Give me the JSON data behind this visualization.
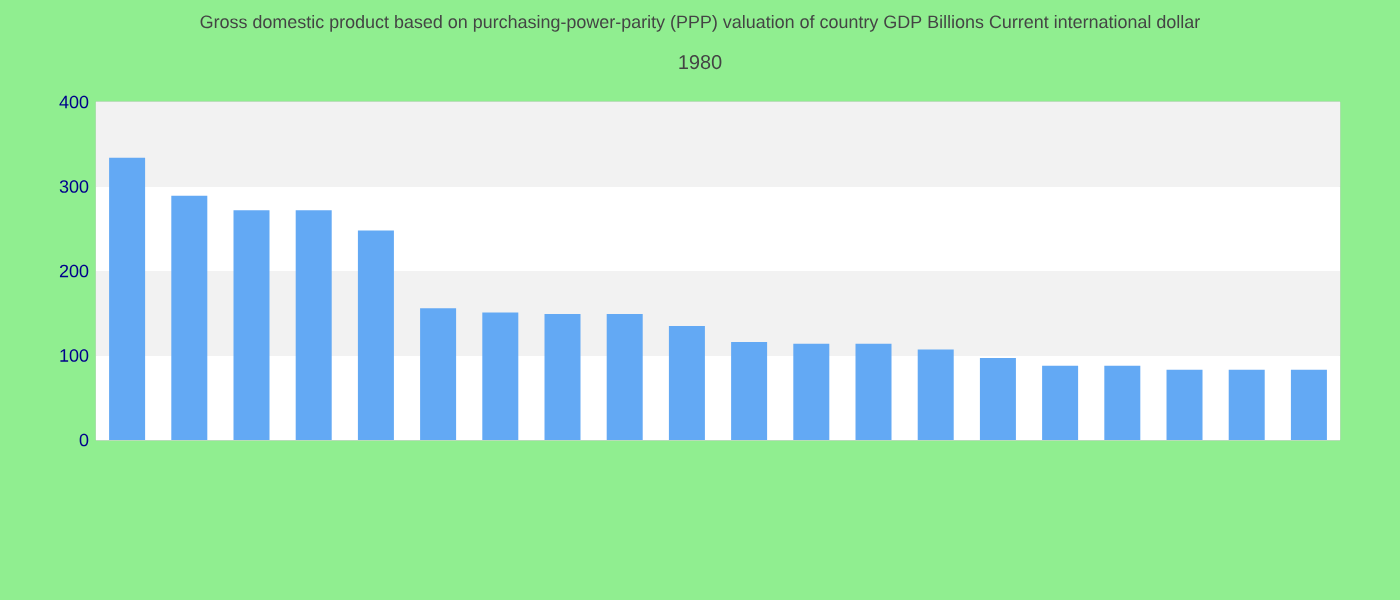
{
  "chart_data": {
    "type": "bar",
    "title": "Gross domestic product based on purchasing-power-parity (PPP) valuation of country GDP Billions Current international dollar",
    "subtitle": "1980",
    "categories": [
      null,
      null,
      null,
      null,
      null,
      null,
      null,
      null,
      null,
      null,
      null,
      null,
      null,
      null,
      null,
      null,
      null,
      null,
      null,
      null
    ],
    "values": [
      334,
      289,
      272,
      272,
      248,
      156,
      151,
      149,
      149,
      135,
      116,
      114,
      114,
      107,
      97,
      88,
      88,
      83,
      83,
      83
    ],
    "color": "#63a9f4",
    "ylim": [
      0,
      400
    ],
    "yticks": [
      0,
      100,
      200,
      300,
      400
    ],
    "grid": "y"
  }
}
